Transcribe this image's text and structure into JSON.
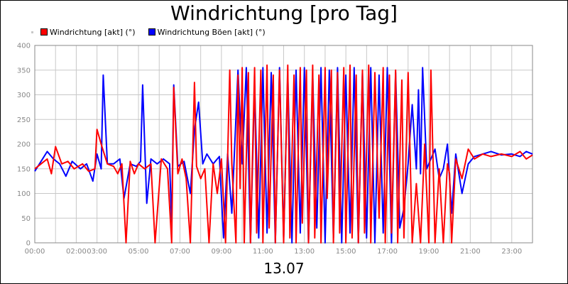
{
  "chart_data": {
    "type": "line",
    "title": "Windrichtung [pro Tag]",
    "xlabel": "13.07",
    "ylabel": "",
    "ylim": [
      0,
      400
    ],
    "yticks": [
      "0",
      "50",
      "100",
      "150",
      "200",
      "250",
      "300",
      "350",
      "400"
    ],
    "xlim": [
      0,
      24
    ],
    "xticks": [
      {
        "h": 0,
        "label": "00:00"
      },
      {
        "h": 2,
        "label": "02:00"
      },
      {
        "h": 3,
        "label": "03:00"
      },
      {
        "h": 5,
        "label": "05:00"
      },
      {
        "h": 7,
        "label": "07:00"
      },
      {
        "h": 9,
        "label": "09:00"
      },
      {
        "h": 11,
        "label": "11:00"
      },
      {
        "h": 13,
        "label": "13:00"
      },
      {
        "h": 15,
        "label": "15:00"
      },
      {
        "h": 17,
        "label": "17:00"
      },
      {
        "h": 19,
        "label": "19:00"
      },
      {
        "h": 21,
        "label": "21:00"
      },
      {
        "h": 23,
        "label": "23:00"
      }
    ],
    "grid": true,
    "legend": "top-left",
    "series": [
      {
        "name": "Windrichtung [akt] (°)",
        "color": "#ff0000",
        "points": [
          [
            0.0,
            150
          ],
          [
            0.3,
            160
          ],
          [
            0.6,
            170
          ],
          [
            0.8,
            140
          ],
          [
            1.0,
            195
          ],
          [
            1.3,
            160
          ],
          [
            1.6,
            165
          ],
          [
            1.9,
            150
          ],
          [
            2.3,
            160
          ],
          [
            2.6,
            145
          ],
          [
            2.9,
            150
          ],
          [
            3.0,
            230
          ],
          [
            3.2,
            200
          ],
          [
            3.5,
            160
          ],
          [
            3.8,
            155
          ],
          [
            4.0,
            140
          ],
          [
            4.2,
            160
          ],
          [
            4.4,
            0
          ],
          [
            4.6,
            165
          ],
          [
            4.8,
            140
          ],
          [
            5.0,
            160
          ],
          [
            5.3,
            150
          ],
          [
            5.6,
            160
          ],
          [
            5.8,
            0
          ],
          [
            6.1,
            170
          ],
          [
            6.4,
            150
          ],
          [
            6.6,
            0
          ],
          [
            6.7,
            315
          ],
          [
            6.9,
            140
          ],
          [
            7.1,
            170
          ],
          [
            7.3,
            130
          ],
          [
            7.5,
            0
          ],
          [
            7.6,
            160
          ],
          [
            7.7,
            325
          ],
          [
            7.8,
            155
          ],
          [
            8.0,
            130
          ],
          [
            8.2,
            150
          ],
          [
            8.4,
            0
          ],
          [
            8.6,
            160
          ],
          [
            8.8,
            100
          ],
          [
            9.0,
            170
          ],
          [
            9.2,
            0
          ],
          [
            9.4,
            350
          ],
          [
            9.5,
            160
          ],
          [
            9.7,
            0
          ],
          [
            9.8,
            340
          ],
          [
            9.9,
            110
          ],
          [
            10.0,
            355
          ],
          [
            10.1,
            0
          ],
          [
            10.3,
            345
          ],
          [
            10.4,
            0
          ],
          [
            10.6,
            355
          ],
          [
            10.7,
            20
          ],
          [
            10.9,
            350
          ],
          [
            11.0,
            0
          ],
          [
            11.2,
            360
          ],
          [
            11.3,
            30
          ],
          [
            11.5,
            340
          ],
          [
            11.6,
            0
          ],
          [
            11.8,
            350
          ],
          [
            12.0,
            0
          ],
          [
            12.2,
            360
          ],
          [
            12.3,
            10
          ],
          [
            12.5,
            340
          ],
          [
            12.6,
            0
          ],
          [
            12.8,
            355
          ],
          [
            12.9,
            40
          ],
          [
            13.1,
            350
          ],
          [
            13.2,
            0
          ],
          [
            13.4,
            360
          ],
          [
            13.5,
            10
          ],
          [
            13.7,
            340
          ],
          [
            13.8,
            0
          ],
          [
            14.0,
            355
          ],
          [
            14.1,
            90
          ],
          [
            14.3,
            350
          ],
          [
            14.4,
            0
          ],
          [
            14.6,
            345
          ],
          [
            14.7,
            20
          ],
          [
            14.9,
            355
          ],
          [
            15.0,
            0
          ],
          [
            15.2,
            360
          ],
          [
            15.3,
            10
          ],
          [
            15.5,
            340
          ],
          [
            15.6,
            0
          ],
          [
            15.8,
            350
          ],
          [
            15.9,
            20
          ],
          [
            16.1,
            360
          ],
          [
            16.2,
            0
          ],
          [
            16.4,
            345
          ],
          [
            16.6,
            50
          ],
          [
            16.8,
            355
          ],
          [
            16.9,
            0
          ],
          [
            17.1,
            340
          ],
          [
            17.2,
            20
          ],
          [
            17.4,
            350
          ],
          [
            17.5,
            0
          ],
          [
            17.7,
            330
          ],
          [
            17.8,
            10
          ],
          [
            18.0,
            345
          ],
          [
            18.2,
            0
          ],
          [
            18.4,
            120
          ],
          [
            18.6,
            0
          ],
          [
            18.8,
            200
          ],
          [
            19.0,
            0
          ],
          [
            19.1,
            350
          ],
          [
            19.3,
            0
          ],
          [
            19.5,
            150
          ],
          [
            19.7,
            0
          ],
          [
            19.9,
            160
          ],
          [
            20.0,
            140
          ],
          [
            20.1,
            0
          ],
          [
            20.3,
            170
          ],
          [
            20.6,
            130
          ],
          [
            20.9,
            190
          ],
          [
            21.2,
            170
          ],
          [
            21.6,
            180
          ],
          [
            22.0,
            175
          ],
          [
            22.5,
            180
          ],
          [
            23.0,
            175
          ],
          [
            23.4,
            185
          ],
          [
            23.7,
            170
          ],
          [
            24.0,
            178
          ]
        ]
      },
      {
        "name": "Windrichtung Böen [akt] (°)",
        "color": "#0000ff",
        "points": [
          [
            0.0,
            145
          ],
          [
            0.3,
            165
          ],
          [
            0.6,
            185
          ],
          [
            0.9,
            170
          ],
          [
            1.2,
            160
          ],
          [
            1.5,
            135
          ],
          [
            1.8,
            165
          ],
          [
            2.2,
            150
          ],
          [
            2.5,
            160
          ],
          [
            2.8,
            125
          ],
          [
            3.0,
            180
          ],
          [
            3.2,
            150
          ],
          [
            3.3,
            340
          ],
          [
            3.5,
            160
          ],
          [
            3.8,
            160
          ],
          [
            4.1,
            170
          ],
          [
            4.3,
            90
          ],
          [
            4.6,
            160
          ],
          [
            4.9,
            155
          ],
          [
            5.1,
            165
          ],
          [
            5.2,
            320
          ],
          [
            5.4,
            80
          ],
          [
            5.6,
            170
          ],
          [
            5.9,
            160
          ],
          [
            6.2,
            170
          ],
          [
            6.5,
            160
          ],
          [
            6.6,
            40
          ],
          [
            6.7,
            320
          ],
          [
            6.9,
            155
          ],
          [
            7.2,
            165
          ],
          [
            7.5,
            100
          ],
          [
            7.7,
            230
          ],
          [
            7.9,
            285
          ],
          [
            8.1,
            160
          ],
          [
            8.3,
            180
          ],
          [
            8.6,
            160
          ],
          [
            8.9,
            175
          ],
          [
            9.1,
            10
          ],
          [
            9.3,
            180
          ],
          [
            9.5,
            60
          ],
          [
            9.8,
            350
          ],
          [
            10.0,
            160
          ],
          [
            10.2,
            355
          ],
          [
            10.4,
            0
          ],
          [
            10.6,
            320
          ],
          [
            10.8,
            10
          ],
          [
            11.0,
            355
          ],
          [
            11.2,
            20
          ],
          [
            11.4,
            345
          ],
          [
            11.6,
            0
          ],
          [
            11.8,
            355
          ],
          [
            12.0,
            10
          ],
          [
            12.2,
            340
          ],
          [
            12.4,
            0
          ],
          [
            12.6,
            350
          ],
          [
            12.8,
            20
          ],
          [
            13.0,
            355
          ],
          [
            13.2,
            0
          ],
          [
            13.4,
            340
          ],
          [
            13.6,
            30
          ],
          [
            13.8,
            355
          ],
          [
            14.0,
            0
          ],
          [
            14.2,
            350
          ],
          [
            14.4,
            10
          ],
          [
            14.6,
            355
          ],
          [
            14.8,
            0
          ],
          [
            15.0,
            340
          ],
          [
            15.2,
            20
          ],
          [
            15.4,
            355
          ],
          [
            15.6,
            0
          ],
          [
            15.8,
            345
          ],
          [
            16.0,
            10
          ],
          [
            16.2,
            355
          ],
          [
            16.4,
            0
          ],
          [
            16.6,
            340
          ],
          [
            16.8,
            20
          ],
          [
            17.0,
            355
          ],
          [
            17.2,
            0
          ],
          [
            17.4,
            345
          ],
          [
            17.6,
            30
          ],
          [
            17.8,
            70
          ],
          [
            18.0,
            160
          ],
          [
            18.2,
            280
          ],
          [
            18.4,
            150
          ],
          [
            18.5,
            310
          ],
          [
            18.6,
            140
          ],
          [
            18.7,
            355
          ],
          [
            18.9,
            150
          ],
          [
            19.1,
            170
          ],
          [
            19.3,
            190
          ],
          [
            19.5,
            130
          ],
          [
            19.7,
            150
          ],
          [
            19.9,
            200
          ],
          [
            20.1,
            60
          ],
          [
            20.3,
            180
          ],
          [
            20.6,
            100
          ],
          [
            20.9,
            160
          ],
          [
            21.2,
            175
          ],
          [
            21.6,
            180
          ],
          [
            22.0,
            185
          ],
          [
            22.5,
            178
          ],
          [
            23.0,
            180
          ],
          [
            23.4,
            175
          ],
          [
            23.7,
            185
          ],
          [
            24.0,
            180
          ]
        ]
      }
    ]
  }
}
